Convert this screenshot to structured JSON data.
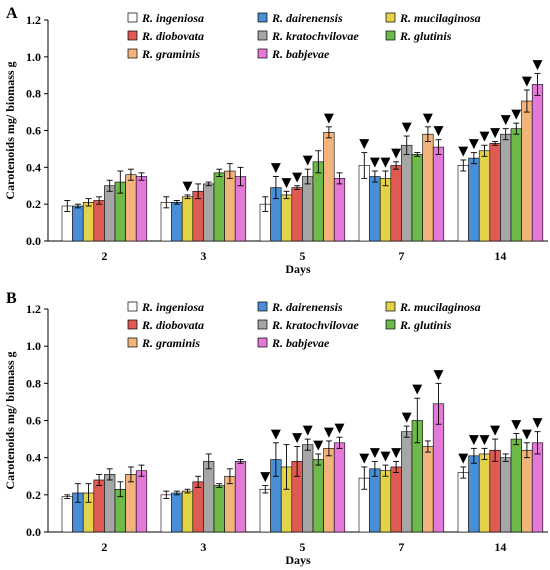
{
  "figure": {
    "series_colors": {
      "R. ingeniosa": "#ffffff",
      "R. dairenensis": "#4a8fd6",
      "R. mucilaginosa": "#e4d24a",
      "R. diobovata": "#de5a52",
      "R. kratochvilovae": "#a6a6a6",
      "R. glutinis": "#6fb84a",
      "R. graminis": "#f2b47a",
      "R. babjevae": "#e37ad7"
    },
    "marker_symbol": "▼"
  },
  "chart_data": [
    {
      "type": "bar",
      "panel_label": "A",
      "xlabel": "Days",
      "ylabel": "Carotenoids mg/ biomass g",
      "ylim": [
        0,
        1.2
      ],
      "yticks": [
        "0.0",
        "0.2",
        "0.4",
        "0.6",
        "0.8",
        "1.0",
        "1.2"
      ],
      "categories": [
        "2",
        "3",
        "5",
        "7",
        "14"
      ],
      "legend_position": "top-center",
      "series": [
        {
          "name": "R. ingeniosa",
          "values": [
            0.19,
            0.21,
            0.2,
            0.41,
            0.41
          ],
          "errors": [
            0.03,
            0.03,
            0.04,
            0.07,
            0.03
          ],
          "marked": [
            false,
            false,
            false,
            true,
            true
          ]
        },
        {
          "name": "R. dairenensis",
          "values": [
            0.19,
            0.21,
            0.29,
            0.35,
            0.45
          ],
          "errors": [
            0.01,
            0.01,
            0.06,
            0.03,
            0.03
          ],
          "marked": [
            false,
            false,
            true,
            true,
            true
          ]
        },
        {
          "name": "R. mucilaginosa",
          "values": [
            0.21,
            0.24,
            0.25,
            0.34,
            0.49
          ],
          "errors": [
            0.02,
            0.01,
            0.02,
            0.04,
            0.03
          ],
          "marked": [
            false,
            true,
            true,
            true,
            true
          ]
        },
        {
          "name": "R. diobovata",
          "values": [
            0.22,
            0.27,
            0.29,
            0.41,
            0.53
          ],
          "errors": [
            0.02,
            0.04,
            0.01,
            0.02,
            0.01
          ],
          "marked": [
            false,
            false,
            true,
            true,
            true
          ]
        },
        {
          "name": "R. kratochvilovae",
          "values": [
            0.3,
            0.31,
            0.35,
            0.52,
            0.58
          ],
          "errors": [
            0.03,
            0.01,
            0.04,
            0.05,
            0.03
          ],
          "marked": [
            false,
            false,
            true,
            true,
            true
          ]
        },
        {
          "name": "R. glutinis",
          "values": [
            0.32,
            0.37,
            0.43,
            0.47,
            0.61
          ],
          "errors": [
            0.06,
            0.02,
            0.06,
            0.01,
            0.03
          ],
          "marked": [
            false,
            false,
            false,
            false,
            true
          ]
        },
        {
          "name": "R. graminis",
          "values": [
            0.36,
            0.38,
            0.59,
            0.58,
            0.76
          ],
          "errors": [
            0.03,
            0.04,
            0.03,
            0.04,
            0.06
          ],
          "marked": [
            false,
            false,
            true,
            true,
            true
          ]
        },
        {
          "name": "R. babjevae",
          "values": [
            0.35,
            0.35,
            0.34,
            0.51,
            0.85
          ],
          "errors": [
            0.02,
            0.05,
            0.03,
            0.04,
            0.06
          ],
          "marked": [
            false,
            false,
            false,
            true,
            true
          ]
        }
      ]
    },
    {
      "type": "bar",
      "panel_label": "B",
      "xlabel": "Days",
      "ylabel": "Carotenoids mg/ biomass g",
      "ylim": [
        0,
        1.2
      ],
      "yticks": [
        "0.0",
        "0.2",
        "0.4",
        "0.6",
        "0.8",
        "1.0",
        "1.2"
      ],
      "categories": [
        "2",
        "3",
        "5",
        "7",
        "14"
      ],
      "legend_position": "top-center",
      "series": [
        {
          "name": "R. ingeniosa",
          "values": [
            0.19,
            0.2,
            0.23,
            0.29,
            0.32
          ],
          "errors": [
            0.01,
            0.02,
            0.02,
            0.06,
            0.03
          ],
          "marked": [
            false,
            false,
            true,
            true,
            true
          ]
        },
        {
          "name": "R. dairenensis",
          "values": [
            0.21,
            0.21,
            0.39,
            0.34,
            0.41
          ],
          "errors": [
            0.05,
            0.01,
            0.09,
            0.04,
            0.04
          ],
          "marked": [
            false,
            false,
            true,
            true,
            true
          ]
        },
        {
          "name": "R. mucilaginosa",
          "values": [
            0.21,
            0.22,
            0.35,
            0.33,
            0.42
          ],
          "errors": [
            0.05,
            0.01,
            0.12,
            0.03,
            0.03
          ],
          "marked": [
            false,
            false,
            false,
            true,
            true
          ]
        },
        {
          "name": "R. diobovata",
          "values": [
            0.28,
            0.27,
            0.38,
            0.35,
            0.44
          ],
          "errors": [
            0.03,
            0.03,
            0.08,
            0.03,
            0.06
          ],
          "marked": [
            false,
            false,
            true,
            true,
            true
          ]
        },
        {
          "name": "R. kratochvilovae",
          "values": [
            0.31,
            0.38,
            0.47,
            0.54,
            0.4
          ],
          "errors": [
            0.03,
            0.04,
            0.03,
            0.03,
            0.02
          ],
          "marked": [
            false,
            false,
            true,
            true,
            false
          ]
        },
        {
          "name": "R. glutinis",
          "values": [
            0.23,
            0.25,
            0.39,
            0.6,
            0.5
          ],
          "errors": [
            0.04,
            0.01,
            0.03,
            0.12,
            0.03
          ],
          "marked": [
            false,
            false,
            true,
            true,
            true
          ]
        },
        {
          "name": "R. graminis",
          "values": [
            0.31,
            0.3,
            0.45,
            0.46,
            0.44
          ],
          "errors": [
            0.04,
            0.04,
            0.04,
            0.03,
            0.04
          ],
          "marked": [
            false,
            false,
            true,
            false,
            true
          ]
        },
        {
          "name": "R. babjevae",
          "values": [
            0.33,
            0.38,
            0.48,
            0.69,
            0.48
          ],
          "errors": [
            0.03,
            0.01,
            0.03,
            0.11,
            0.06
          ],
          "marked": [
            false,
            false,
            true,
            true,
            true
          ]
        }
      ]
    }
  ]
}
